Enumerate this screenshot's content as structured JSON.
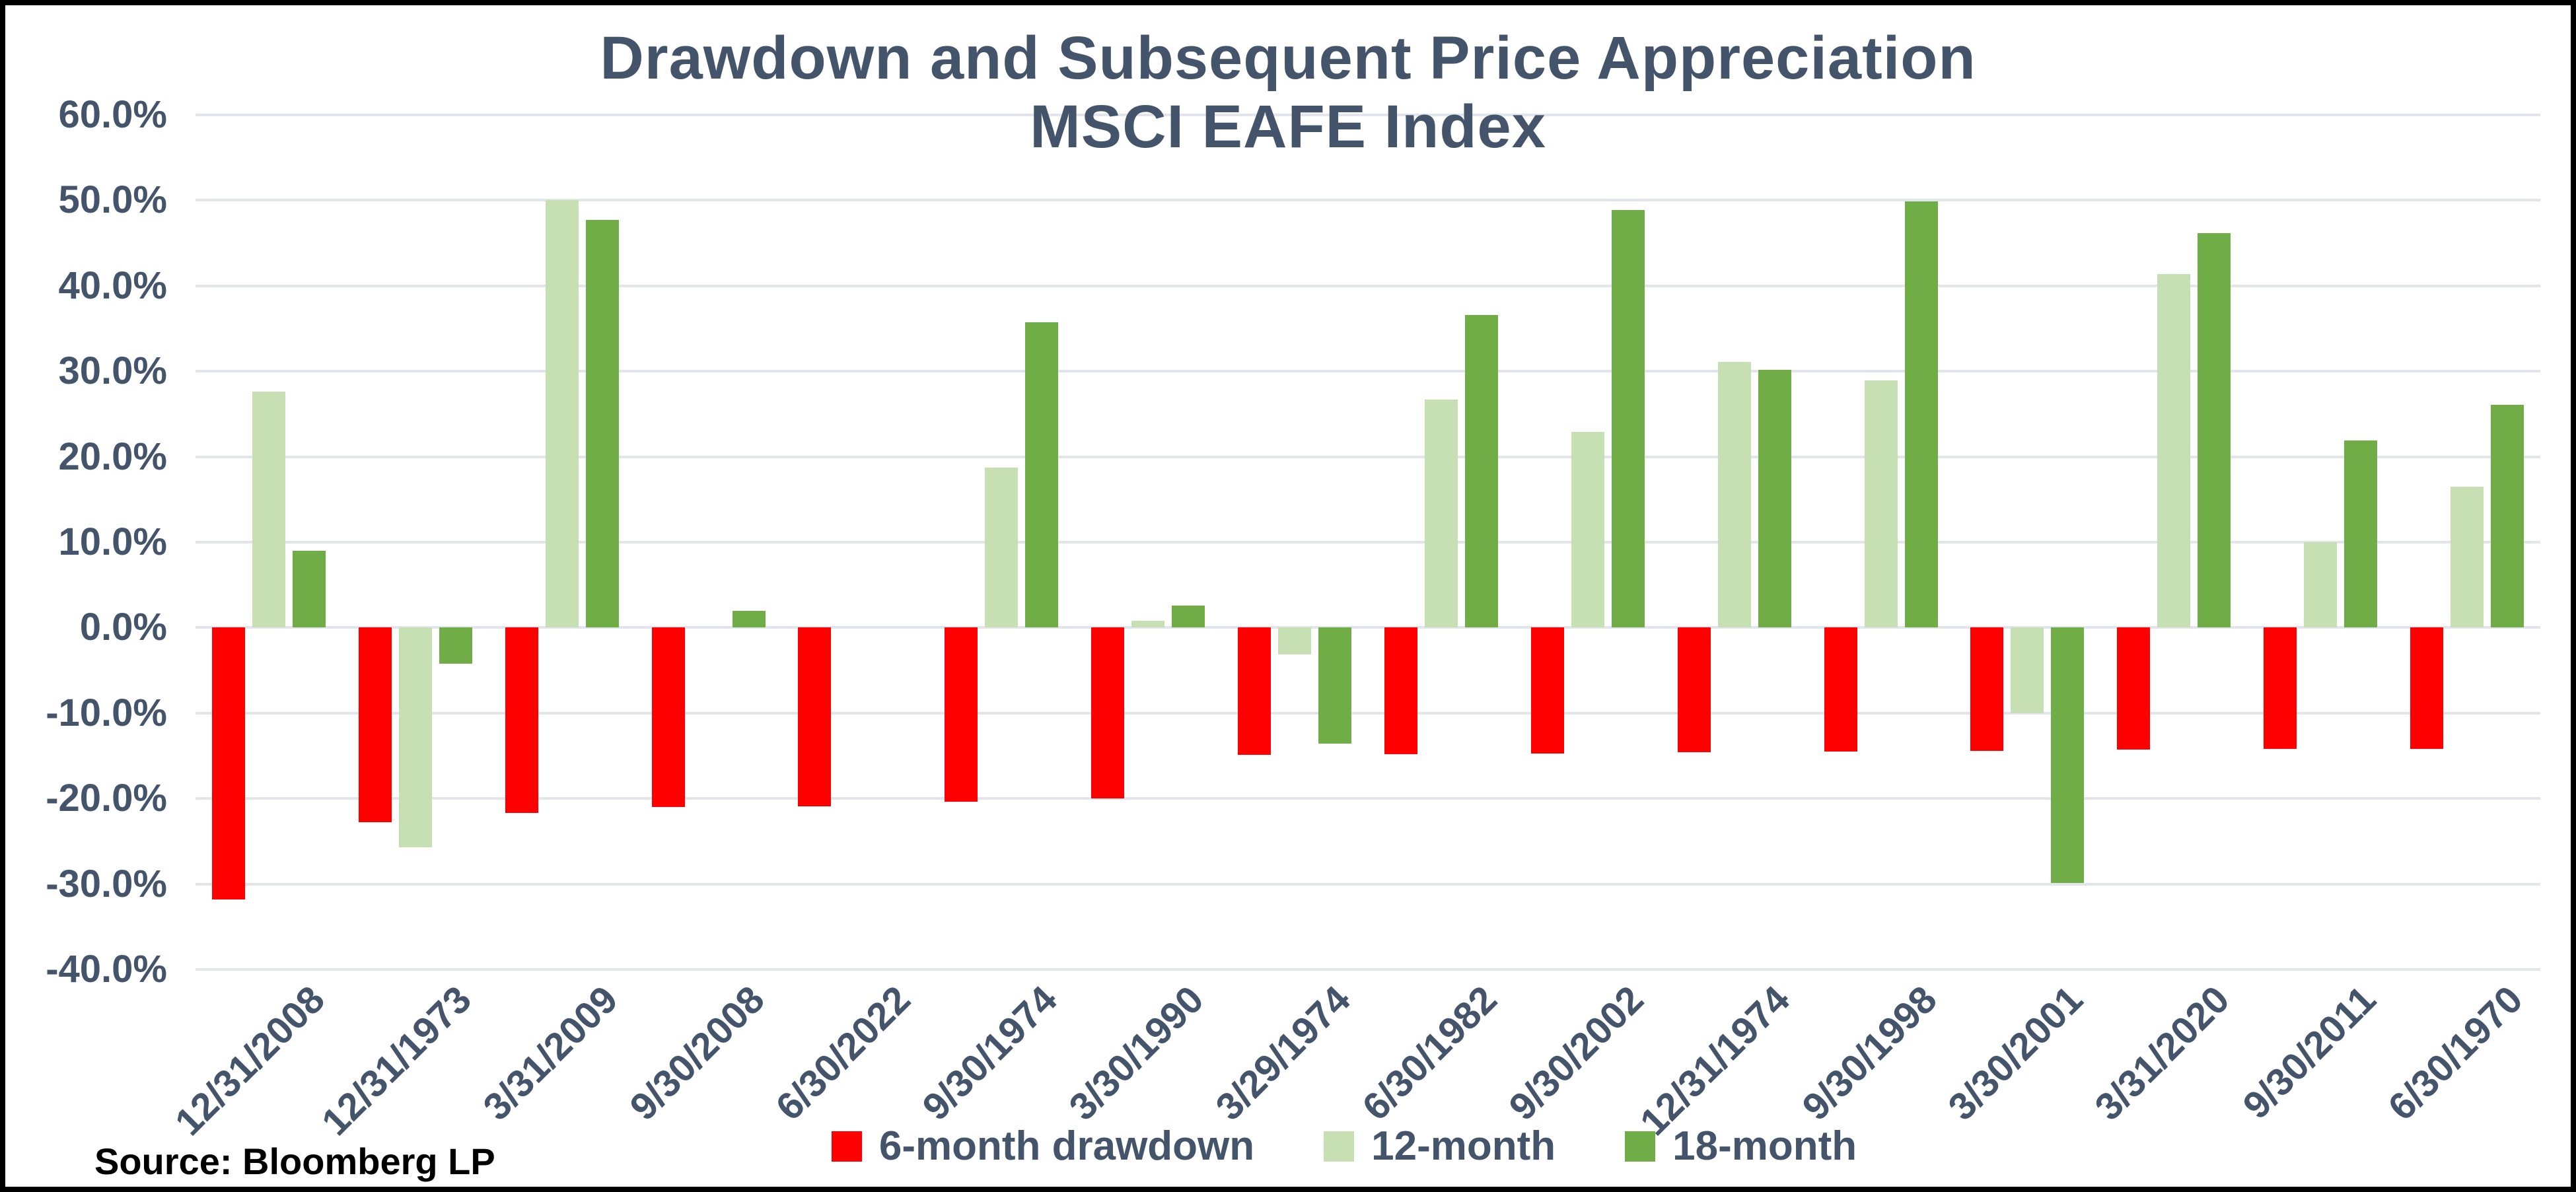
{
  "title": {
    "line1": "Drawdown and Subsequent Price Appreciation",
    "line2": "MSCI EAFE Index"
  },
  "source": "Source: Bloomberg LP",
  "colors": {
    "drawdown": "#FF0000",
    "twelve_month": "#C6E0B4",
    "eighteen_month": "#70AD47",
    "text": "#44546A",
    "gridline": "#E2E6EC",
    "source_text": "#000000",
    "background": "#FFFFFF",
    "border": "#000000"
  },
  "chart_data": {
    "type": "bar",
    "title": "Drawdown and Subsequent Price Appreciation",
    "subtitle": "MSCI EAFE Index",
    "xlabel": "",
    "ylabel": "",
    "ylim": [
      -40,
      60
    ],
    "ytick_step": 10,
    "ytick_format": "percent_one_decimal",
    "grid": true,
    "legend_position": "bottom",
    "categories": [
      "12/31/2008",
      "12/31/1973",
      "3/31/2009",
      "9/30/2008",
      "6/30/2022",
      "9/30/1974",
      "3/30/1990",
      "3/29/1974",
      "6/30/1982",
      "9/30/2002",
      "12/31/1974",
      "9/30/1998",
      "3/30/2001",
      "3/31/2020",
      "9/30/2011",
      "6/30/1970"
    ],
    "series": [
      {
        "name": "6-month drawdown",
        "color_key": "drawdown",
        "values": [
          -31.8,
          -22.8,
          -21.7,
          -21.0,
          -20.9,
          -20.4,
          -20.0,
          -14.9,
          -14.8,
          -14.7,
          -14.6,
          -14.5,
          -14.4,
          -14.3,
          -14.2,
          -14.2
        ]
      },
      {
        "name": "12-month",
        "color_key": "twelve_month",
        "values": [
          27.6,
          -25.7,
          50.0,
          0.0,
          null,
          18.7,
          0.8,
          -3.1,
          26.7,
          22.9,
          31.1,
          28.9,
          -10.0,
          41.4,
          10.0,
          16.5
        ]
      },
      {
        "name": "18-month",
        "color_key": "eighteen_month",
        "values": [
          9.0,
          -4.2,
          47.7,
          2.0,
          null,
          35.7,
          2.6,
          -13.6,
          36.6,
          48.9,
          30.2,
          49.9,
          -29.9,
          46.2,
          21.9,
          26.1
        ]
      }
    ]
  }
}
